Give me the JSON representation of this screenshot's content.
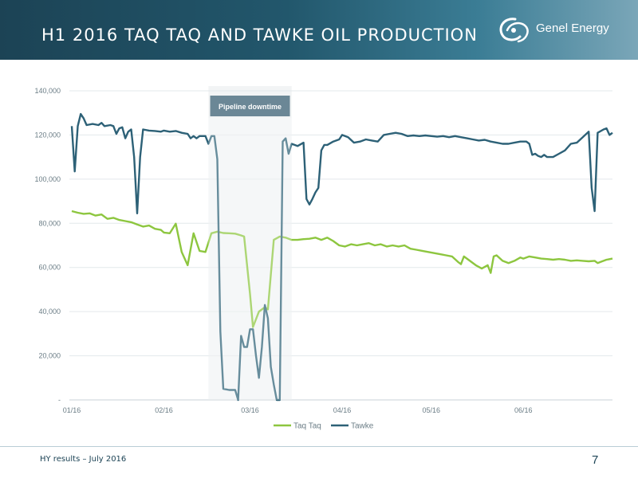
{
  "header": {
    "title": "H1 2016 TAQ TAQ AND TAWKE OIL PRODUCTION"
  },
  "logo": {
    "text": "Genel Energy",
    "icon": "genel-swirl-icon"
  },
  "footer": {
    "text": "HY results – July 2016",
    "page_number": "7"
  },
  "chart_data": {
    "type": "line",
    "y_ticks": [
      0,
      20000,
      40000,
      60000,
      80000,
      100000,
      120000,
      140000
    ],
    "y_tick_labels": [
      "-",
      "20,000",
      "40,000",
      "60,000",
      "80,000",
      "100,000",
      "120,000",
      "140,000"
    ],
    "ylim": [
      0,
      140000
    ],
    "x_ticks": [
      0,
      31,
      60,
      91,
      121,
      152
    ],
    "x_tick_labels": [
      "01/16",
      "02/16",
      "03/16",
      "04/16",
      "05/16",
      "06/16"
    ],
    "xlim": [
      0,
      182
    ],
    "grid": true,
    "legend_position": "bottom",
    "annotation": {
      "text": "Pipeline downtime",
      "x_start": 46,
      "x_end": 74
    },
    "colors": {
      "taq_taq": "#8dc63f",
      "tawke": "#2d6177",
      "downtime_fill": "#f2f4f5",
      "downtime_label_bg": "#6b8796"
    },
    "series": [
      {
        "name": "Taq Taq",
        "points": [
          [
            0,
            85500
          ],
          [
            2,
            84800
          ],
          [
            4,
            84300
          ],
          [
            6,
            84500
          ],
          [
            8,
            83500
          ],
          [
            10,
            84000
          ],
          [
            12,
            82000
          ],
          [
            14,
            82500
          ],
          [
            16,
            81500
          ],
          [
            18,
            81000
          ],
          [
            20,
            80500
          ],
          [
            22,
            79500
          ],
          [
            24,
            78500
          ],
          [
            26,
            79000
          ],
          [
            28,
            77500
          ],
          [
            30,
            77000
          ],
          [
            31,
            75800
          ],
          [
            33,
            75500
          ],
          [
            35,
            79800
          ],
          [
            37,
            67000
          ],
          [
            39,
            61000
          ],
          [
            41,
            75500
          ],
          [
            43,
            67500
          ],
          [
            45,
            67000
          ],
          [
            47,
            75500
          ],
          [
            49,
            76200
          ],
          [
            51,
            75600
          ],
          [
            53,
            75500
          ],
          [
            55,
            75300
          ],
          [
            57,
            74500
          ],
          [
            58,
            74000
          ],
          [
            60,
            48000
          ],
          [
            61,
            33000
          ],
          [
            63,
            40000
          ],
          [
            65,
            42000
          ],
          [
            66,
            41000
          ],
          [
            68,
            72500
          ],
          [
            70,
            74000
          ],
          [
            72,
            73500
          ],
          [
            74,
            72500
          ],
          [
            76,
            72500
          ],
          [
            78,
            72800
          ],
          [
            80,
            73000
          ],
          [
            82,
            73500
          ],
          [
            84,
            72500
          ],
          [
            86,
            73500
          ],
          [
            88,
            72000
          ],
          [
            90,
            70000
          ],
          [
            92,
            69500
          ],
          [
            94,
            70500
          ],
          [
            96,
            70000
          ],
          [
            98,
            70500
          ],
          [
            100,
            71000
          ],
          [
            102,
            70000
          ],
          [
            104,
            70500
          ],
          [
            106,
            69500
          ],
          [
            108,
            70000
          ],
          [
            110,
            69500
          ],
          [
            112,
            70000
          ],
          [
            114,
            68500
          ],
          [
            116,
            68000
          ],
          [
            118,
            67500
          ],
          [
            120,
            67000
          ],
          [
            122,
            66500
          ],
          [
            124,
            66000
          ],
          [
            126,
            65500
          ],
          [
            128,
            65000
          ],
          [
            130,
            62500
          ],
          [
            131,
            61500
          ],
          [
            132,
            65000
          ],
          [
            134,
            63000
          ],
          [
            136,
            61000
          ],
          [
            138,
            59500
          ],
          [
            140,
            61000
          ],
          [
            141,
            57500
          ],
          [
            142,
            65000
          ],
          [
            143,
            65500
          ],
          [
            145,
            63000
          ],
          [
            147,
            62000
          ],
          [
            149,
            63000
          ],
          [
            151,
            64500
          ],
          [
            152,
            64000
          ],
          [
            154,
            65000
          ],
          [
            156,
            64500
          ],
          [
            158,
            64000
          ],
          [
            160,
            63800
          ],
          [
            162,
            63500
          ],
          [
            164,
            63800
          ],
          [
            166,
            63500
          ],
          [
            168,
            63000
          ],
          [
            170,
            63200
          ],
          [
            172,
            63000
          ],
          [
            174,
            62800
          ],
          [
            176,
            63000
          ],
          [
            177,
            62000
          ],
          [
            178,
            62500
          ],
          [
            180,
            63500
          ],
          [
            182,
            64000
          ]
        ]
      },
      {
        "name": "Tawke",
        "points": [
          [
            0,
            124000
          ],
          [
            1,
            103500
          ],
          [
            2,
            124000
          ],
          [
            3,
            129500
          ],
          [
            4,
            127500
          ],
          [
            5,
            124500
          ],
          [
            7,
            125000
          ],
          [
            9,
            124500
          ],
          [
            10,
            125500
          ],
          [
            11,
            124000
          ],
          [
            13,
            124500
          ],
          [
            14,
            124000
          ],
          [
            15,
            120500
          ],
          [
            16,
            123000
          ],
          [
            17,
            123500
          ],
          [
            18,
            118500
          ],
          [
            19,
            121500
          ],
          [
            20,
            122500
          ],
          [
            21,
            110000
          ],
          [
            22,
            84500
          ],
          [
            23,
            110000
          ],
          [
            24,
            122500
          ],
          [
            26,
            122000
          ],
          [
            28,
            121800
          ],
          [
            30,
            121500
          ],
          [
            31,
            122000
          ],
          [
            33,
            121500
          ],
          [
            35,
            121800
          ],
          [
            37,
            121000
          ],
          [
            39,
            120500
          ],
          [
            40,
            118500
          ],
          [
            41,
            119500
          ],
          [
            42,
            118500
          ],
          [
            43,
            119500
          ],
          [
            45,
            119500
          ],
          [
            46,
            116000
          ],
          [
            47,
            119500
          ],
          [
            48,
            119500
          ],
          [
            49,
            109000
          ],
          [
            50,
            31000
          ],
          [
            51,
            5000
          ],
          [
            53,
            4500
          ],
          [
            55,
            4500
          ],
          [
            56,
            0
          ],
          [
            57,
            29000
          ],
          [
            58,
            24000
          ],
          [
            59,
            24000
          ],
          [
            60,
            32000
          ],
          [
            61,
            32000
          ],
          [
            62,
            20000
          ],
          [
            63,
            10000
          ],
          [
            64,
            24000
          ],
          [
            65,
            43000
          ],
          [
            66,
            37000
          ],
          [
            67,
            15000
          ],
          [
            68,
            7000
          ],
          [
            69,
            0
          ],
          [
            70,
            0
          ],
          [
            71,
            117000
          ],
          [
            72,
            118500
          ],
          [
            73,
            111500
          ],
          [
            74,
            116000
          ],
          [
            76,
            115000
          ],
          [
            78,
            116500
          ],
          [
            79,
            91000
          ],
          [
            80,
            88500
          ],
          [
            81,
            91000
          ],
          [
            82,
            94000
          ],
          [
            83,
            96000
          ],
          [
            84,
            113000
          ],
          [
            85,
            115500
          ],
          [
            86,
            115500
          ],
          [
            88,
            117000
          ],
          [
            90,
            118000
          ],
          [
            91,
            120000
          ],
          [
            93,
            119000
          ],
          [
            95,
            116500
          ],
          [
            97,
            117000
          ],
          [
            99,
            118000
          ],
          [
            101,
            117500
          ],
          [
            103,
            117000
          ],
          [
            105,
            120000
          ],
          [
            107,
            120500
          ],
          [
            109,
            121000
          ],
          [
            111,
            120500
          ],
          [
            113,
            119500
          ],
          [
            115,
            119800
          ],
          [
            117,
            119500
          ],
          [
            119,
            119800
          ],
          [
            121,
            119500
          ],
          [
            123,
            119200
          ],
          [
            125,
            119500
          ],
          [
            127,
            119000
          ],
          [
            129,
            119500
          ],
          [
            131,
            119000
          ],
          [
            133,
            118500
          ],
          [
            135,
            118000
          ],
          [
            137,
            117500
          ],
          [
            139,
            117800
          ],
          [
            141,
            117000
          ],
          [
            143,
            116500
          ],
          [
            145,
            116000
          ],
          [
            147,
            116000
          ],
          [
            149,
            116500
          ],
          [
            151,
            117000
          ],
          [
            153,
            117000
          ],
          [
            154,
            116000
          ],
          [
            155,
            111000
          ],
          [
            156,
            111500
          ],
          [
            157,
            110500
          ],
          [
            158,
            110000
          ],
          [
            159,
            111000
          ],
          [
            160,
            110000
          ],
          [
            162,
            110000
          ],
          [
            164,
            111500
          ],
          [
            166,
            113000
          ],
          [
            168,
            116000
          ],
          [
            170,
            116500
          ],
          [
            172,
            119000
          ],
          [
            174,
            121500
          ],
          [
            175,
            96000
          ],
          [
            176,
            85500
          ],
          [
            177,
            121000
          ],
          [
            179,
            122500
          ],
          [
            180,
            123000
          ],
          [
            181,
            120000
          ],
          [
            182,
            121000
          ]
        ]
      }
    ]
  }
}
